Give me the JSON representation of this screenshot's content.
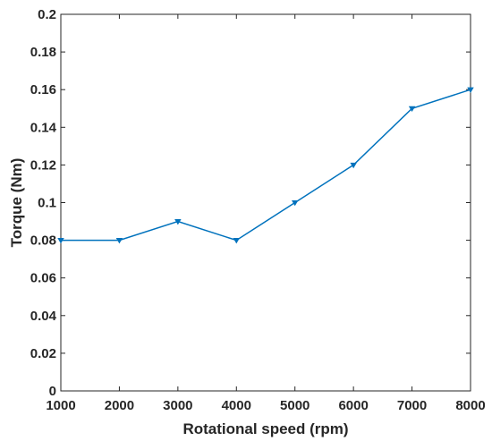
{
  "chart_data": {
    "type": "line",
    "title": "",
    "xlabel": "Rotational speed (rpm)",
    "ylabel": "Torque (Nm)",
    "xlim": [
      1000,
      8000
    ],
    "ylim": [
      0,
      0.2
    ],
    "xticks": [
      1000,
      2000,
      3000,
      4000,
      5000,
      6000,
      7000,
      8000
    ],
    "xtick_labels": [
      "1000",
      "2000",
      "3000",
      "4000",
      "5000",
      "6000",
      "7000",
      "8000"
    ],
    "yticks": [
      0,
      0.02,
      0.04,
      0.06,
      0.08,
      0.1,
      0.12,
      0.14,
      0.16,
      0.18,
      0.2
    ],
    "ytick_labels": [
      "0",
      "0.02",
      "0.04",
      "0.06",
      "0.08",
      "0.1",
      "0.12",
      "0.14",
      "0.16",
      "0.18",
      "0.2"
    ],
    "grid": false,
    "legend": "none",
    "series": [
      {
        "color": "#0072BD",
        "marker": "down-triangle",
        "x": [
          1000,
          2000,
          3000,
          4000,
          5000,
          6000,
          7000,
          8000
        ],
        "y": [
          0.08,
          0.08,
          0.09,
          0.08,
          0.1,
          0.12,
          0.15,
          0.16
        ]
      }
    ]
  }
}
